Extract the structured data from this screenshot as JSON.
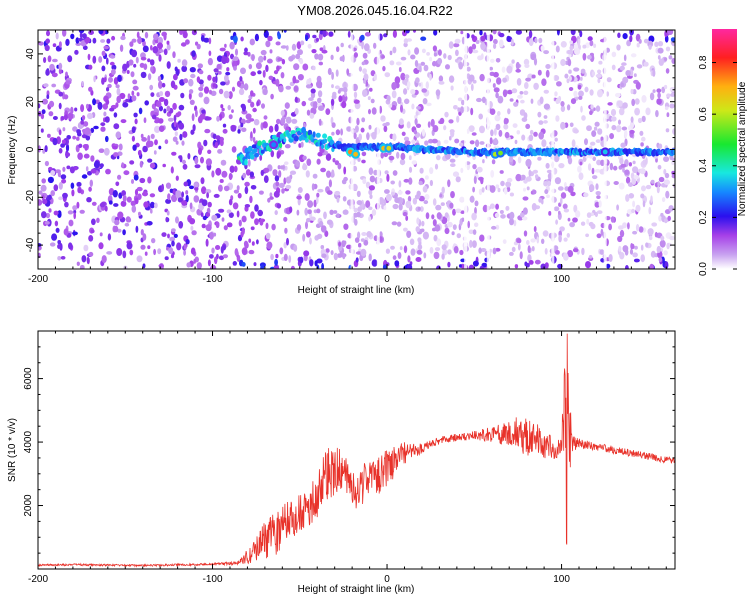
{
  "title": "YM08.2026.045.16.04.R22",
  "colors": {
    "snr_line": "#e8322a",
    "ridge": "#1a10d8",
    "scatter_dark": "#7a22d8",
    "scatter_light": "#c9b6f0"
  },
  "chart_data": [
    {
      "id": "spectrogram",
      "type": "heatmap",
      "xlabel": "Height of straight line (km)",
      "ylabel": "Frequency (Hz)",
      "xlim": [
        -200,
        165
      ],
      "ylim": [
        -50,
        50
      ],
      "xticks": [
        -200,
        -100,
        0,
        100
      ],
      "yticks": [
        -40,
        -20,
        0,
        20,
        40
      ],
      "colorbar": {
        "label": "Normalized spectral amplitude",
        "range": [
          0,
          0.93
        ],
        "ticks": [
          "0.0",
          "0.2",
          "0.4",
          "0.6",
          "0.8"
        ],
        "tick_values": [
          0.0,
          0.2,
          0.4,
          0.6,
          0.8
        ]
      },
      "ridge": [
        {
          "x": -85,
          "f": -5
        },
        {
          "x": -75,
          "f": 0
        },
        {
          "x": -65,
          "f": 3
        },
        {
          "x": -55,
          "f": 6
        },
        {
          "x": -45,
          "f": 6
        },
        {
          "x": -35,
          "f": 3
        },
        {
          "x": -25,
          "f": 1
        },
        {
          "x": -15,
          "f": 1
        },
        {
          "x": 0,
          "f": 1
        },
        {
          "x": 25,
          "f": 0
        },
        {
          "x": 50,
          "f": -1
        },
        {
          "x": 75,
          "f": -1
        },
        {
          "x": 100,
          "f": -1
        },
        {
          "x": 130,
          "f": -1
        },
        {
          "x": 165,
          "f": -1
        }
      ],
      "hot_spots": [
        {
          "x": -21,
          "f": -1,
          "amp": 0.75
        },
        {
          "x": -18,
          "f": -2,
          "amp": 0.7
        },
        {
          "x": -2,
          "f": 0.5,
          "amp": 0.7
        },
        {
          "x": 1,
          "f": 0.5,
          "amp": 0.65
        },
        {
          "x": 62,
          "f": -2,
          "amp": 0.6
        },
        {
          "x": 65,
          "f": -1.5,
          "amp": 0.55
        },
        {
          "x": -65,
          "f": 2,
          "amp": 0.3
        },
        {
          "x": 125,
          "f": -1,
          "amp": 0.35
        }
      ]
    },
    {
      "id": "snr",
      "type": "line",
      "xlabel": "Height of straight line (km)",
      "ylabel": "SNR (10 * v/v)",
      "xlim": [
        -200,
        165
      ],
      "ylim": [
        0,
        7500
      ],
      "xticks": [
        -200,
        -100,
        0,
        100
      ],
      "yticks": [
        2000,
        4000,
        6000
      ],
      "x": [
        -200,
        -180,
        -160,
        -140,
        -120,
        -100,
        -85,
        -75,
        -70,
        -65,
        -60,
        -55,
        -50,
        -45,
        -40,
        -35,
        -30,
        -25,
        -20,
        -15,
        -10,
        -5,
        0,
        5,
        10,
        15,
        20,
        25,
        30,
        40,
        50,
        60,
        70,
        75,
        80,
        85,
        90,
        95,
        100,
        102,
        104,
        106,
        110,
        120,
        130,
        140,
        150,
        160,
        165
      ],
      "values": [
        120,
        140,
        120,
        110,
        130,
        150,
        200,
        600,
        900,
        1100,
        1300,
        1500,
        1700,
        1900,
        2400,
        2900,
        3100,
        3200,
        2500,
        2700,
        2800,
        2900,
        3200,
        3400,
        3600,
        3700,
        3800,
        3950,
        4050,
        4150,
        4200,
        4250,
        4250,
        4300,
        4150,
        4200,
        3900,
        3800,
        3850,
        5500,
        4200,
        4000,
        3950,
        3850,
        3750,
        3650,
        3550,
        3450,
        3400
      ],
      "noise_amplitude": [
        30,
        30,
        30,
        30,
        30,
        30,
        60,
        400,
        600,
        700,
        750,
        700,
        650,
        600,
        800,
        900,
        800,
        600,
        700,
        700,
        700,
        650,
        600,
        500,
        400,
        250,
        150,
        120,
        120,
        120,
        150,
        250,
        400,
        550,
        600,
        500,
        450,
        400,
        300,
        2400,
        2000,
        300,
        160,
        120,
        120,
        110,
        110,
        110,
        110
      ]
    }
  ]
}
